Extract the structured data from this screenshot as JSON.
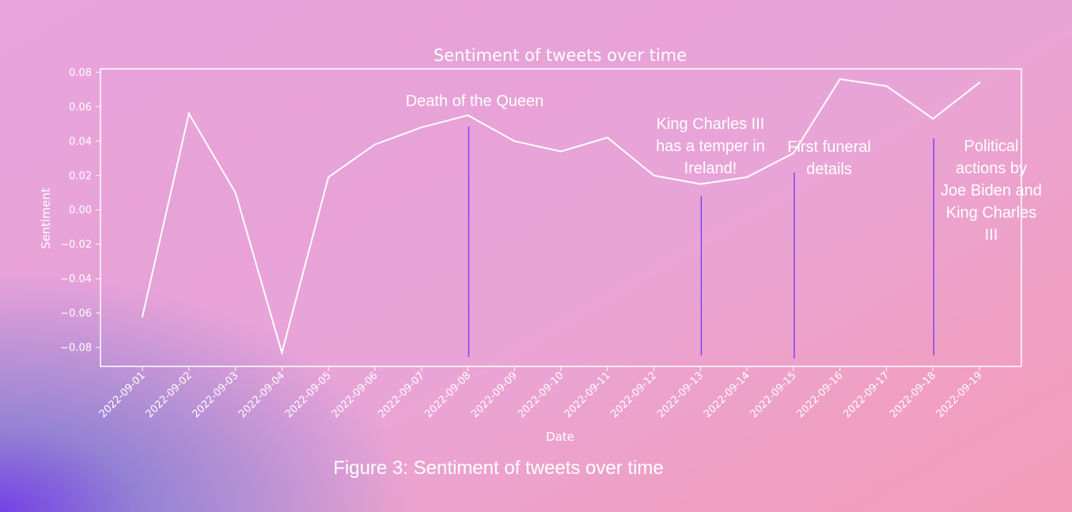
{
  "caption": "Figure 3: Sentiment of tweets over time",
  "colors": {
    "line": "#ffffff",
    "event_marker": "#7b3df5",
    "axes": "#ffffff"
  },
  "chart_data": {
    "type": "line",
    "title": "Sentiment of tweets over time",
    "xlabel": "Date",
    "ylabel": "Sentiment",
    "categories": [
      "2022-09-01",
      "2022-09-02",
      "2022-09-03",
      "2022-09-04",
      "2022-09-05",
      "2022-09-06",
      "2022-09-07",
      "2022-09-08",
      "2022-09-09",
      "2022-09-10",
      "2022-09-11",
      "2022-09-12",
      "2022-09-13",
      "2022-09-14",
      "2022-09-15",
      "2022-09-16",
      "2022-09-17",
      "2022-09-18",
      "2022-09-19"
    ],
    "values": [
      -0.062,
      0.056,
      0.01,
      -0.083,
      0.019,
      0.038,
      0.048,
      0.055,
      0.04,
      0.034,
      0.042,
      0.02,
      0.015,
      0.019,
      0.033,
      0.076,
      0.072,
      0.053,
      0.074
    ],
    "ylim": [
      -0.091,
      0.082
    ],
    "yticks": [
      "0.08",
      "0.06",
      "0.04",
      "0.02",
      "0.00",
      "−0.02",
      "−0.04",
      "−0.06",
      "−0.08"
    ],
    "ytick_values": [
      0.08,
      0.06,
      0.04,
      0.02,
      0.0,
      -0.02,
      -0.04,
      -0.06,
      -0.08
    ],
    "grid": false,
    "annotations": [
      {
        "date": "2022-09-08",
        "lines": [
          "Death of the Queen"
        ]
      },
      {
        "date": "2022-09-13",
        "lines": [
          "King Charles III",
          "has a temper in",
          "Ireland!"
        ]
      },
      {
        "date": "2022-09-15",
        "lines": [
          "First funeral",
          "details"
        ]
      },
      {
        "date": "2022-09-18",
        "lines": [
          "Political",
          "actions by",
          "Joe Biden and",
          "King Charles",
          "III"
        ]
      }
    ]
  }
}
